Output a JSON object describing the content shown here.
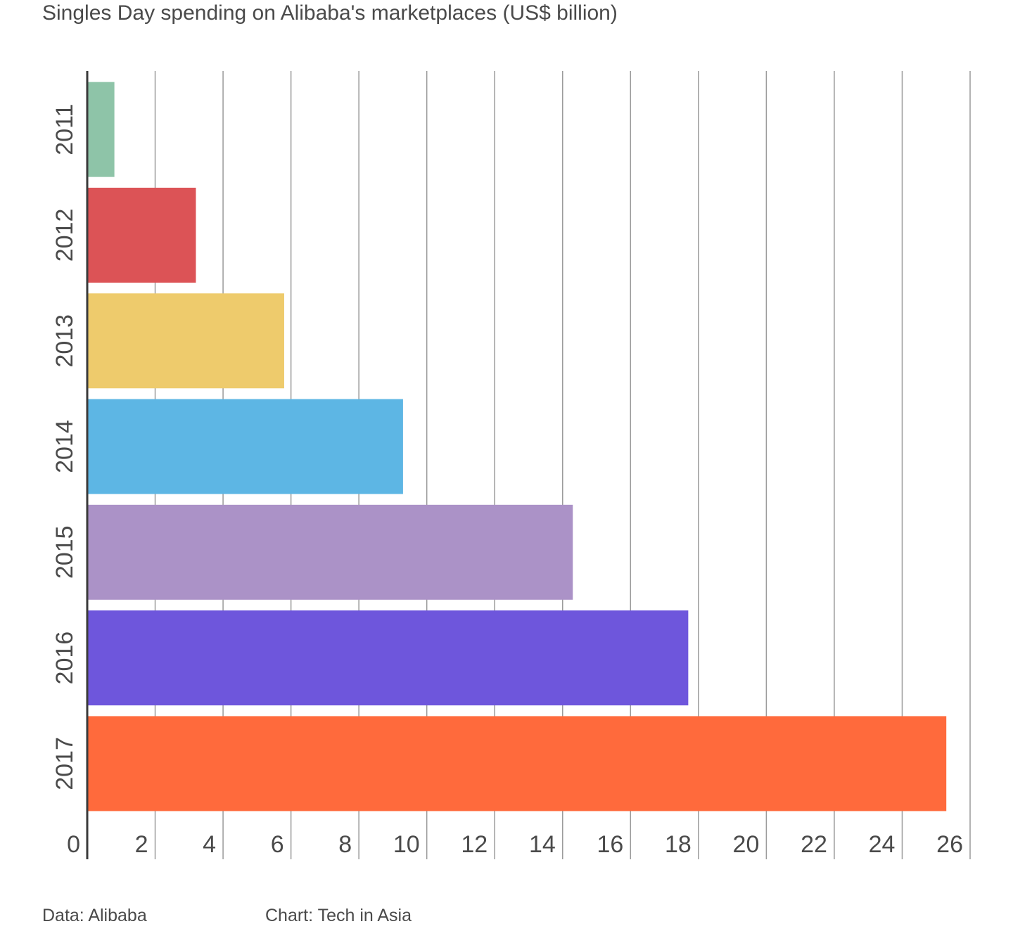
{
  "chart_data": {
    "type": "bar",
    "orientation": "horizontal",
    "title": "Singles Day spending on Alibaba's marketplaces (US$ billion)",
    "categories": [
      "2011",
      "2012",
      "2013",
      "2014",
      "2015",
      "2016",
      "2017"
    ],
    "values": [
      0.8,
      3.2,
      5.8,
      9.3,
      14.3,
      17.7,
      25.3
    ],
    "colors": [
      "#8ec4a8",
      "#dc5356",
      "#eecb6c",
      "#5db6e4",
      "#ab92c7",
      "#6e56dc",
      "#ff6a3c"
    ],
    "xlim": [
      0,
      26
    ],
    "x_ticks": [
      "0",
      "2",
      "4",
      "6",
      "8",
      "10",
      "12",
      "14",
      "16",
      "18",
      "20",
      "22",
      "24",
      "26"
    ],
    "grid": "vertical",
    "legend": "none"
  },
  "footer": {
    "source": "Data: Alibaba",
    "credit": "Chart: Tech in Asia"
  }
}
